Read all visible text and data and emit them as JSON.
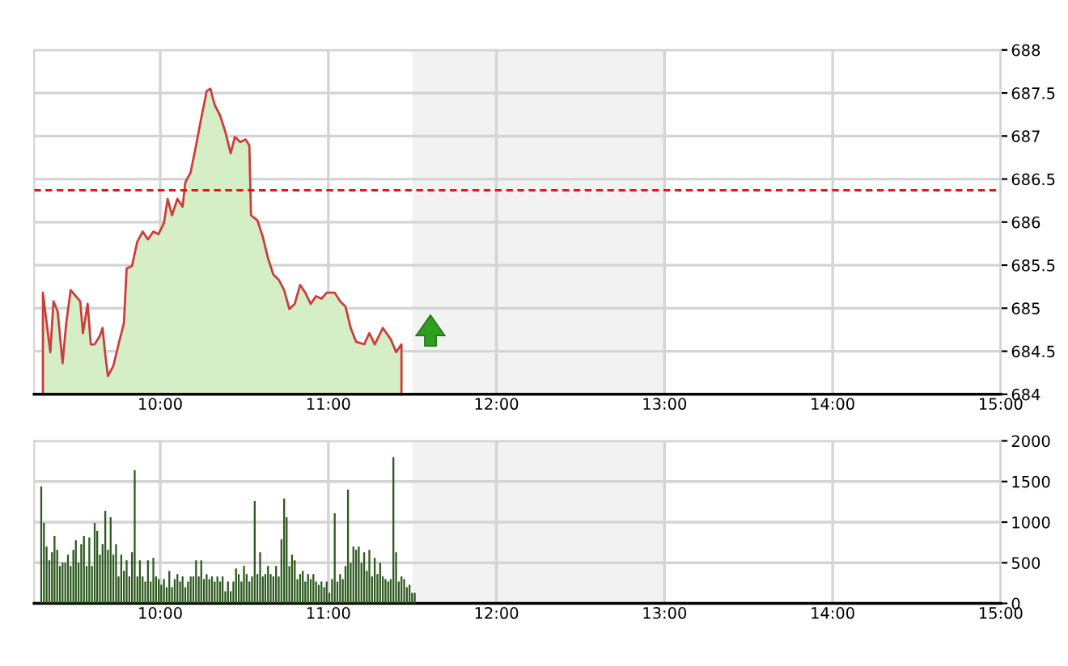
{
  "chart_data": [
    {
      "type": "area",
      "color": "#cc3d3d",
      "x": [
        9.302,
        9.324,
        9.346,
        9.365,
        9.39,
        9.419,
        9.441,
        9.467,
        9.498,
        9.524,
        9.54,
        9.568,
        9.587,
        9.61,
        9.641,
        9.657,
        9.673,
        9.689,
        9.721,
        9.752,
        9.784,
        9.8,
        9.832,
        9.863,
        9.895,
        9.927,
        9.959,
        9.99,
        10.022,
        10.044,
        10.07,
        10.102,
        10.133,
        10.149,
        10.181,
        10.213,
        10.244,
        10.276,
        10.298,
        10.324,
        10.356,
        10.387,
        10.419,
        10.444,
        10.476,
        10.508,
        10.53,
        10.54,
        10.578,
        10.61,
        10.641,
        10.673,
        10.705,
        10.737,
        10.768,
        10.8,
        10.832,
        10.863,
        10.895,
        10.927,
        10.959,
        10.99,
        11.038,
        11.07,
        11.102,
        11.133,
        11.165,
        11.213,
        11.244,
        11.276,
        11.324,
        11.371,
        11.403,
        11.435
      ],
      "values": [
        685.18,
        684.83,
        684.49,
        685.08,
        684.96,
        684.36,
        684.83,
        685.21,
        685.14,
        685.08,
        684.71,
        685.05,
        684.58,
        684.58,
        684.68,
        684.77,
        684.46,
        684.21,
        684.33,
        684.58,
        684.83,
        685.46,
        685.49,
        685.77,
        685.89,
        685.8,
        685.89,
        685.86,
        685.99,
        686.27,
        686.08,
        686.27,
        686.18,
        686.46,
        686.58,
        686.89,
        687.21,
        687.52,
        687.55,
        687.36,
        687.24,
        687.05,
        686.8,
        686.99,
        686.93,
        686.96,
        686.89,
        686.08,
        686.02,
        685.83,
        685.58,
        685.39,
        685.33,
        685.21,
        684.99,
        685.05,
        685.27,
        685.18,
        685.05,
        685.14,
        685.11,
        685.18,
        685.18,
        685.08,
        685.02,
        684.77,
        684.61,
        684.58,
        684.71,
        684.58,
        684.77,
        684.64,
        684.49,
        684.58
      ],
      "xlim": [
        9.25,
        15
      ],
      "ylim": [
        684,
        688
      ],
      "xticks": [
        {
          "value": 10,
          "label": "10:00"
        },
        {
          "value": 11,
          "label": "11:00"
        },
        {
          "value": 12,
          "label": "12:00"
        },
        {
          "value": 13,
          "label": "13:00"
        },
        {
          "value": 14,
          "label": "14:00"
        },
        {
          "value": 15,
          "label": "15:00"
        }
      ],
      "yticks": [
        684,
        684.5,
        685,
        685.5,
        686,
        686.5,
        687,
        687.5,
        688
      ],
      "ref_lines": [
        {
          "axis": "y",
          "value": 686.37,
          "color": "#ff0000",
          "line_style": "dashed"
        }
      ],
      "bands": [
        {
          "axis": "x",
          "from": 11.5,
          "to": 13,
          "color": "#f2f2f2"
        }
      ],
      "grid": true
    },
    {
      "type": "bar",
      "color": "#2d5a1e",
      "x": [
        9.292,
        9.308,
        9.324,
        9.34,
        9.356,
        9.371,
        9.387,
        9.403,
        9.419,
        9.435,
        9.451,
        9.467,
        9.483,
        9.498,
        9.514,
        9.53,
        9.546,
        9.562,
        9.578,
        9.594,
        9.61,
        9.625,
        9.641,
        9.657,
        9.673,
        9.689,
        9.705,
        9.721,
        9.737,
        9.752,
        9.768,
        9.784,
        9.8,
        9.816,
        9.832,
        9.848,
        9.864,
        9.879,
        9.895,
        9.911,
        9.927,
        9.943,
        9.959,
        9.975,
        9.991,
        10.006,
        10.022,
        10.038,
        10.054,
        10.07,
        10.086,
        10.102,
        10.118,
        10.133,
        10.149,
        10.165,
        10.181,
        10.197,
        10.213,
        10.229,
        10.244,
        10.26,
        10.276,
        10.292,
        10.308,
        10.324,
        10.34,
        10.356,
        10.371,
        10.387,
        10.403,
        10.419,
        10.435,
        10.451,
        10.467,
        10.483,
        10.498,
        10.514,
        10.53,
        10.546,
        10.562,
        10.578,
        10.594,
        10.61,
        10.625,
        10.641,
        10.657,
        10.673,
        10.689,
        10.705,
        10.721,
        10.737,
        10.752,
        10.768,
        10.784,
        10.8,
        10.816,
        10.832,
        10.848,
        10.863,
        10.879,
        10.895,
        10.911,
        10.927,
        10.943,
        10.959,
        10.975,
        10.99,
        11.006,
        11.022,
        11.038,
        11.054,
        11.07,
        11.086,
        11.102,
        11.117,
        11.133,
        11.149,
        11.165,
        11.181,
        11.197,
        11.213,
        11.229,
        11.244,
        11.26,
        11.276,
        11.292,
        11.308,
        11.324,
        11.34,
        11.356,
        11.371,
        11.387,
        11.403,
        11.419,
        11.435,
        11.451,
        11.467,
        11.483,
        11.498,
        11.514
      ],
      "values": [
        1440,
        990,
        700,
        530,
        630,
        830,
        660,
        460,
        500,
        500,
        600,
        460,
        660,
        780,
        500,
        730,
        830,
        460,
        810,
        460,
        990,
        890,
        600,
        730,
        1140,
        660,
        1060,
        600,
        730,
        330,
        600,
        400,
        530,
        330,
        630,
        1640,
        330,
        530,
        330,
        270,
        530,
        270,
        560,
        330,
        300,
        230,
        300,
        200,
        400,
        200,
        300,
        360,
        270,
        330,
        200,
        270,
        330,
        330,
        530,
        330,
        530,
        300,
        360,
        300,
        330,
        270,
        330,
        270,
        330,
        150,
        270,
        150,
        270,
        430,
        360,
        270,
        460,
        360,
        270,
        330,
        1260,
        360,
        630,
        330,
        360,
        460,
        360,
        330,
        460,
        330,
        790,
        1290,
        1060,
        460,
        600,
        530,
        300,
        360,
        400,
        270,
        360,
        300,
        360,
        270,
        230,
        270,
        200,
        270,
        130,
        300,
        1110,
        270,
        360,
        300,
        460,
        1400,
        500,
        700,
        660,
        700,
        500,
        630,
        400,
        660,
        330,
        560,
        360,
        500,
        330,
        300,
        270,
        300,
        1800,
        630,
        270,
        330,
        300,
        200,
        230,
        130,
        130
      ],
      "xlim": [
        9.25,
        15
      ],
      "ylim": [
        0,
        2000
      ],
      "xticks": [
        {
          "value": 10,
          "label": "10:00"
        },
        {
          "value": 11,
          "label": "11:00"
        },
        {
          "value": 12,
          "label": "12:00"
        },
        {
          "value": 13,
          "label": "13:00"
        },
        {
          "value": 14,
          "label": "14:00"
        },
        {
          "value": 15,
          "label": "15:00"
        }
      ],
      "yticks": [
        0,
        500,
        1000,
        1500,
        2000
      ],
      "bands": [
        {
          "axis": "x",
          "from": 11.5,
          "to": 13,
          "color": "#f2f2f2"
        }
      ],
      "grid": true
    }
  ]
}
